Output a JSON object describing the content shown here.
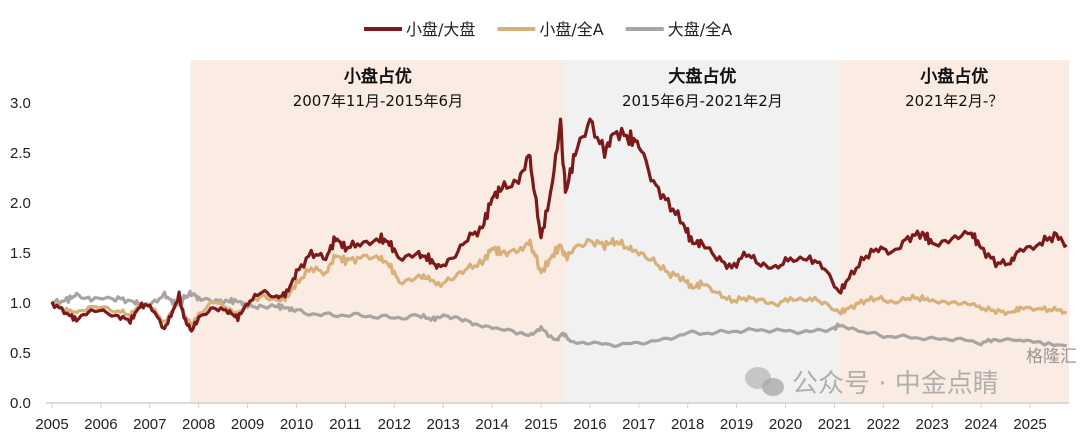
{
  "chart_data": {
    "type": "line",
    "title": "",
    "xlabel": "",
    "ylabel": "",
    "ylim": [
      0,
      3.0
    ],
    "xlim": [
      2005,
      2025.8
    ],
    "yticks": [
      "0.0",
      "0.5",
      "1.0",
      "1.5",
      "2.0",
      "2.5",
      "3.0"
    ],
    "xticks": [
      "2005",
      "2006",
      "2007",
      "2008",
      "2009",
      "2010",
      "2011",
      "2012",
      "2013",
      "2014",
      "2015",
      "2016",
      "2017",
      "2018",
      "2019",
      "2020",
      "2021",
      "2022",
      "2023",
      "2024",
      "2025"
    ],
    "legend_position": "top-center",
    "colors": {
      "small_large": "#7a1a1a",
      "small_all": "#d8b07c",
      "large_all": "#a8a4a2",
      "pink_region": "#fbece3",
      "gray_region": "#f1f1f1"
    },
    "regions": [
      {
        "start": 2007.83,
        "end": 2015.5,
        "type": "pink",
        "title": "小盘占优",
        "subtitle": "2007年11月-2015年6月"
      },
      {
        "start": 2015.5,
        "end": 2021.1,
        "type": "gray",
        "title": "大盘占优",
        "subtitle": "2015年6月-2021年2月"
      },
      {
        "start": 2021.1,
        "end": 2025.8,
        "type": "pink",
        "title": "小盘占优",
        "subtitle": "2021年2月-？"
      }
    ],
    "series": [
      {
        "name": "小盘/大盘",
        "key": "small_large",
        "points": [
          [
            2005,
            1.0
          ],
          [
            2005.3,
            0.9
          ],
          [
            2005.5,
            0.83
          ],
          [
            2005.8,
            0.93
          ],
          [
            2006.3,
            0.88
          ],
          [
            2006.6,
            0.82
          ],
          [
            2006.8,
            0.97
          ],
          [
            2007.0,
            0.98
          ],
          [
            2007.3,
            0.74
          ],
          [
            2007.5,
            0.95
          ],
          [
            2007.6,
            1.08
          ],
          [
            2007.7,
            0.85
          ],
          [
            2007.85,
            0.72
          ],
          [
            2008.0,
            0.85
          ],
          [
            2008.3,
            0.95
          ],
          [
            2008.6,
            0.92
          ],
          [
            2008.8,
            0.85
          ],
          [
            2009.0,
            1.0
          ],
          [
            2009.3,
            1.12
          ],
          [
            2009.6,
            1.05
          ],
          [
            2009.8,
            1.1
          ],
          [
            2010.0,
            1.3
          ],
          [
            2010.3,
            1.5
          ],
          [
            2010.6,
            1.45
          ],
          [
            2010.8,
            1.65
          ],
          [
            2011.0,
            1.55
          ],
          [
            2011.3,
            1.6
          ],
          [
            2011.7,
            1.65
          ],
          [
            2011.9,
            1.6
          ],
          [
            2012.1,
            1.45
          ],
          [
            2012.5,
            1.48
          ],
          [
            2012.7,
            1.45
          ],
          [
            2012.9,
            1.35
          ],
          [
            2013.2,
            1.45
          ],
          [
            2013.5,
            1.65
          ],
          [
            2013.8,
            1.75
          ],
          [
            2014.0,
            2.05
          ],
          [
            2014.2,
            2.15
          ],
          [
            2014.5,
            2.2
          ],
          [
            2014.75,
            2.5
          ],
          [
            2014.9,
            2.0
          ],
          [
            2015.0,
            1.65
          ],
          [
            2015.2,
            2.1
          ],
          [
            2015.4,
            2.8
          ],
          [
            2015.5,
            2.1
          ],
          [
            2015.7,
            2.5
          ],
          [
            2016.0,
            2.82
          ],
          [
            2016.3,
            2.5
          ],
          [
            2016.5,
            2.72
          ],
          [
            2016.8,
            2.65
          ],
          [
            2017.0,
            2.6
          ],
          [
            2017.3,
            2.2
          ],
          [
            2017.6,
            2.0
          ],
          [
            2017.9,
            1.8
          ],
          [
            2018.1,
            1.6
          ],
          [
            2018.3,
            1.6
          ],
          [
            2018.6,
            1.45
          ],
          [
            2018.9,
            1.35
          ],
          [
            2019.2,
            1.5
          ],
          [
            2019.5,
            1.38
          ],
          [
            2019.8,
            1.35
          ],
          [
            2020.1,
            1.45
          ],
          [
            2020.5,
            1.45
          ],
          [
            2020.8,
            1.35
          ],
          [
            2021.1,
            1.1
          ],
          [
            2021.3,
            1.25
          ],
          [
            2021.6,
            1.45
          ],
          [
            2021.9,
            1.55
          ],
          [
            2022.2,
            1.5
          ],
          [
            2022.5,
            1.65
          ],
          [
            2022.8,
            1.7
          ],
          [
            2023.0,
            1.6
          ],
          [
            2023.4,
            1.65
          ],
          [
            2023.8,
            1.7
          ],
          [
            2024.0,
            1.55
          ],
          [
            2024.3,
            1.4
          ],
          [
            2024.6,
            1.4
          ],
          [
            2024.8,
            1.55
          ],
          [
            2025.2,
            1.6
          ],
          [
            2025.5,
            1.67
          ],
          [
            2025.75,
            1.58
          ]
        ]
      },
      {
        "name": "小盘/全A",
        "key": "small_all",
        "points": [
          [
            2005,
            1.0
          ],
          [
            2005.3,
            0.93
          ],
          [
            2005.5,
            0.9
          ],
          [
            2005.8,
            0.96
          ],
          [
            2006.3,
            0.93
          ],
          [
            2006.6,
            0.88
          ],
          [
            2006.8,
            0.98
          ],
          [
            2007.0,
            0.98
          ],
          [
            2007.3,
            0.8
          ],
          [
            2007.5,
            0.96
          ],
          [
            2007.6,
            1.05
          ],
          [
            2007.7,
            0.88
          ],
          [
            2007.85,
            0.78
          ],
          [
            2008.0,
            0.88
          ],
          [
            2008.3,
            1.02
          ],
          [
            2008.6,
            0.95
          ],
          [
            2008.8,
            0.88
          ],
          [
            2009.0,
            1.0
          ],
          [
            2009.3,
            1.07
          ],
          [
            2009.6,
            1.02
          ],
          [
            2009.8,
            1.05
          ],
          [
            2010.0,
            1.2
          ],
          [
            2010.3,
            1.35
          ],
          [
            2010.6,
            1.3
          ],
          [
            2010.8,
            1.48
          ],
          [
            2011.0,
            1.42
          ],
          [
            2011.3,
            1.45
          ],
          [
            2011.7,
            1.45
          ],
          [
            2011.9,
            1.38
          ],
          [
            2012.1,
            1.22
          ],
          [
            2012.5,
            1.27
          ],
          [
            2012.7,
            1.25
          ],
          [
            2012.9,
            1.18
          ],
          [
            2013.2,
            1.25
          ],
          [
            2013.5,
            1.35
          ],
          [
            2013.8,
            1.4
          ],
          [
            2014.0,
            1.55
          ],
          [
            2014.2,
            1.5
          ],
          [
            2014.5,
            1.52
          ],
          [
            2014.75,
            1.62
          ],
          [
            2014.9,
            1.45
          ],
          [
            2015.0,
            1.3
          ],
          [
            2015.2,
            1.45
          ],
          [
            2015.4,
            1.58
          ],
          [
            2015.5,
            1.45
          ],
          [
            2015.7,
            1.55
          ],
          [
            2016.0,
            1.62
          ],
          [
            2016.3,
            1.58
          ],
          [
            2016.5,
            1.62
          ],
          [
            2016.8,
            1.55
          ],
          [
            2017.0,
            1.5
          ],
          [
            2017.3,
            1.42
          ],
          [
            2017.6,
            1.3
          ],
          [
            2017.9,
            1.25
          ],
          [
            2018.1,
            1.15
          ],
          [
            2018.3,
            1.2
          ],
          [
            2018.6,
            1.1
          ],
          [
            2018.9,
            1.02
          ],
          [
            2019.2,
            1.05
          ],
          [
            2019.5,
            1.03
          ],
          [
            2019.8,
            0.98
          ],
          [
            2020.1,
            1.05
          ],
          [
            2020.5,
            1.05
          ],
          [
            2020.8,
            1.0
          ],
          [
            2021.1,
            0.9
          ],
          [
            2021.3,
            0.95
          ],
          [
            2021.6,
            1.02
          ],
          [
            2021.9,
            1.05
          ],
          [
            2022.2,
            1.0
          ],
          [
            2022.5,
            1.05
          ],
          [
            2022.8,
            1.05
          ],
          [
            2023.0,
            1.02
          ],
          [
            2023.4,
            1.02
          ],
          [
            2023.8,
            1.0
          ],
          [
            2024.0,
            0.95
          ],
          [
            2024.3,
            0.92
          ],
          [
            2024.6,
            0.9
          ],
          [
            2024.8,
            0.95
          ],
          [
            2025.2,
            0.94
          ],
          [
            2025.5,
            0.93
          ],
          [
            2025.75,
            0.9
          ]
        ]
      },
      {
        "name": "大盘/全A",
        "key": "large_all",
        "points": [
          [
            2005,
            1.0
          ],
          [
            2005.3,
            1.03
          ],
          [
            2005.5,
            1.08
          ],
          [
            2005.8,
            1.03
          ],
          [
            2006.3,
            1.05
          ],
          [
            2006.6,
            1.02
          ],
          [
            2006.8,
            0.99
          ],
          [
            2007.0,
            0.98
          ],
          [
            2007.3,
            1.08
          ],
          [
            2007.5,
            1.0
          ],
          [
            2007.6,
            0.98
          ],
          [
            2007.7,
            1.05
          ],
          [
            2007.85,
            1.1
          ],
          [
            2008.0,
            1.05
          ],
          [
            2008.3,
            1.02
          ],
          [
            2008.6,
            1.02
          ],
          [
            2008.8,
            1.02
          ],
          [
            2009.0,
            0.97
          ],
          [
            2009.3,
            0.96
          ],
          [
            2009.6,
            0.97
          ],
          [
            2009.8,
            0.95
          ],
          [
            2010.0,
            0.92
          ],
          [
            2010.5,
            0.88
          ],
          [
            2011.0,
            0.88
          ],
          [
            2011.5,
            0.87
          ],
          [
            2012.0,
            0.85
          ],
          [
            2012.5,
            0.87
          ],
          [
            2012.8,
            0.84
          ],
          [
            2013.0,
            0.87
          ],
          [
            2013.3,
            0.85
          ],
          [
            2013.6,
            0.8
          ],
          [
            2014.0,
            0.76
          ],
          [
            2014.5,
            0.7
          ],
          [
            2014.8,
            0.68
          ],
          [
            2015.0,
            0.75
          ],
          [
            2015.3,
            0.62
          ],
          [
            2015.45,
            0.7
          ],
          [
            2015.6,
            0.62
          ],
          [
            2016.0,
            0.6
          ],
          [
            2016.5,
            0.58
          ],
          [
            2017.0,
            0.6
          ],
          [
            2017.5,
            0.63
          ],
          [
            2018.0,
            0.7
          ],
          [
            2018.5,
            0.7
          ],
          [
            2019.0,
            0.72
          ],
          [
            2019.5,
            0.73
          ],
          [
            2020.0,
            0.72
          ],
          [
            2020.5,
            0.71
          ],
          [
            2021.0,
            0.75
          ],
          [
            2021.1,
            0.78
          ],
          [
            2021.5,
            0.72
          ],
          [
            2022.0,
            0.67
          ],
          [
            2022.5,
            0.66
          ],
          [
            2023.0,
            0.64
          ],
          [
            2023.5,
            0.64
          ],
          [
            2024.0,
            0.6
          ],
          [
            2024.3,
            0.64
          ],
          [
            2024.8,
            0.62
          ],
          [
            2025.2,
            0.6
          ],
          [
            2025.75,
            0.57
          ]
        ]
      }
    ]
  },
  "watermark": {
    "text": "公众号 · 中金点睛",
    "corner": "格隆汇"
  }
}
